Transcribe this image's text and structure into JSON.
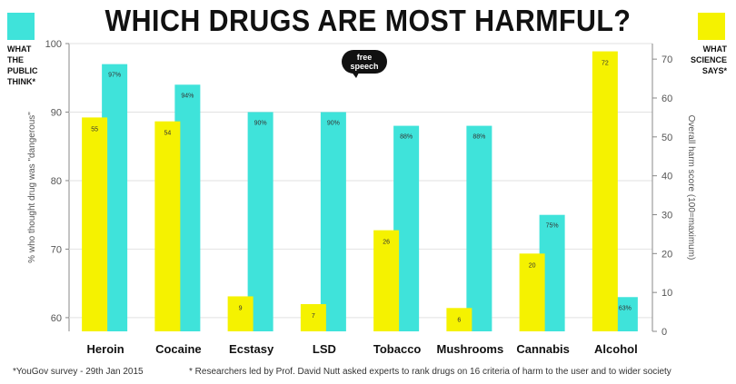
{
  "title": "WHICH DRUGS ARE MOST HARMFUL?",
  "legend": {
    "left_lines": [
      "WHAT",
      "THE",
      "PUBLIC",
      "THINK*"
    ],
    "right_lines": [
      "WHAT",
      "SCIENCE",
      "SAYS*"
    ],
    "left_color": "#3fe3da",
    "right_color": "#f5f200"
  },
  "logo_lines": [
    "free",
    "speech"
  ],
  "footnotes": {
    "left": "*YouGov survey - 29th Jan 2015",
    "right": "* Researchers led by Prof. David Nutt asked experts to rank drugs on 16 criteria of harm to the user and to wider society"
  },
  "chart_data": {
    "type": "bar",
    "title": "WHICH DRUGS ARE MOST HARMFUL?",
    "categories": [
      "Heroin",
      "Cocaine",
      "Ecstasy",
      "LSD",
      "Tobacco",
      "Mushrooms",
      "Cannabis",
      "Alcohol"
    ],
    "series": [
      {
        "name": "WHAT THE PUBLIC THINK*",
        "axis": "left",
        "color": "#3fe3da",
        "values": [
          97,
          94,
          90,
          90,
          88,
          88,
          75,
          63
        ],
        "labels": [
          "97%",
          "94%",
          "90%",
          "90%",
          "88%",
          "88%",
          "75%",
          "63%"
        ]
      },
      {
        "name": "WHAT SCIENCE SAYS*",
        "axis": "right",
        "color": "#f5f200",
        "values": [
          55,
          54,
          9,
          7,
          26,
          6,
          20,
          72
        ],
        "labels": [
          "55",
          "54",
          "9",
          "7",
          "26",
          "6",
          "20",
          "72"
        ]
      }
    ],
    "ylabel_left": "% who thought drug was \"dangerous\"",
    "ylabel_right": "Overall harm score (100=maximum)",
    "ylim_left": [
      58,
      100
    ],
    "yticks_left": [
      60,
      70,
      80,
      90,
      100
    ],
    "ylim_right": [
      0,
      74
    ],
    "yticks_right": [
      0,
      10,
      20,
      30,
      40,
      50,
      60,
      70
    ],
    "grid": true
  }
}
